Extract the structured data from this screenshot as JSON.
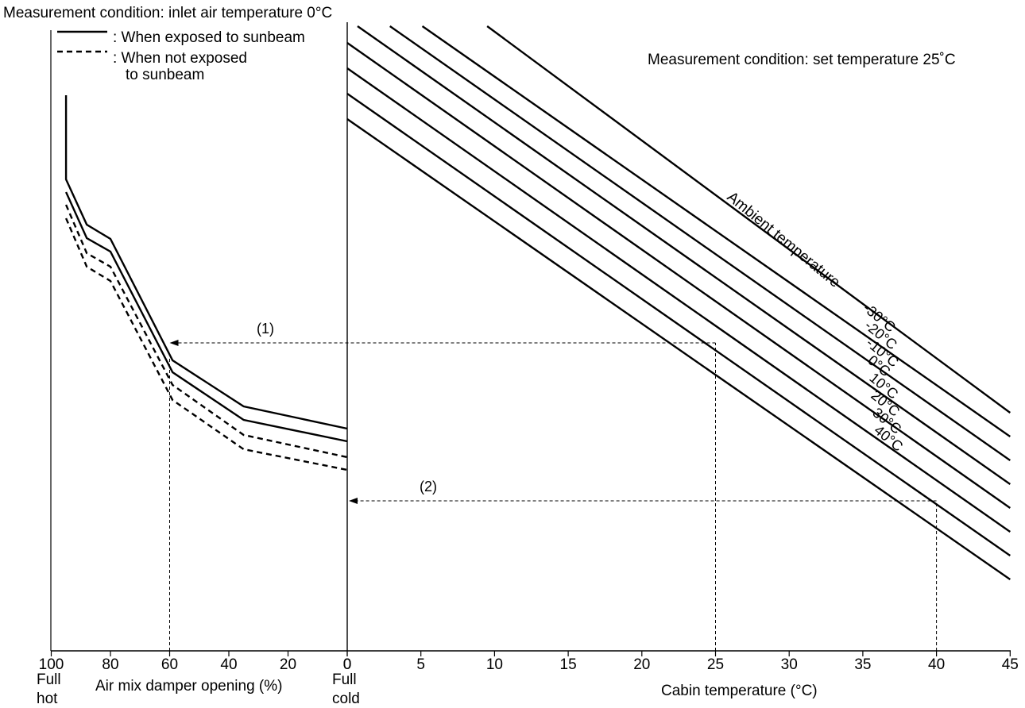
{
  "header": {
    "left_condition": "Measurement condition: inlet air temperature 0°C",
    "right_condition": "Measurement condition: set temperature 25˚C"
  },
  "legend": {
    "solid_label": ": When exposed to sunbeam",
    "dashed_label_line1": ": When not exposed",
    "dashed_label_line2": "to sunbeam"
  },
  "chart_data": [
    {
      "type": "line",
      "xlabel": "Air mix damper opening (%)",
      "x_ticks": [
        100,
        80,
        60,
        40,
        20,
        0
      ],
      "xlim": [
        100,
        0
      ],
      "x_end_labels": {
        "left_line1": "Full",
        "left_line2": "hot",
        "right_line1": "Full",
        "right_line2": "cold"
      },
      "series": [
        {
          "style": "solid",
          "points": [
            [
              95,
              120
            ],
            [
              95,
              226
            ],
            [
              88,
              283
            ],
            [
              80,
              301
            ],
            [
              59,
              454
            ],
            [
              35,
              512
            ],
            [
              0,
              540
            ]
          ]
        },
        {
          "style": "solid",
          "points": [
            [
              95,
              242
            ],
            [
              88,
              300
            ],
            [
              80,
              317
            ],
            [
              59,
              469
            ],
            [
              35,
              529
            ],
            [
              0,
              556
            ]
          ]
        },
        {
          "style": "dashed",
          "points": [
            [
              95,
              258
            ],
            [
              88,
              319
            ],
            [
              80,
              336
            ],
            [
              59,
              485
            ],
            [
              35,
              548
            ],
            [
              0,
              576
            ]
          ]
        },
        {
          "style": "dashed",
          "points": [
            [
              95,
              275
            ],
            [
              88,
              336
            ],
            [
              80,
              354
            ],
            [
              59,
              504
            ],
            [
              35,
              566
            ],
            [
              0,
              592
            ]
          ]
        }
      ]
    },
    {
      "type": "line",
      "xlabel": "Cabin temperature (°C)",
      "x_ticks": [
        0,
        5,
        10,
        15,
        20,
        25,
        30,
        35,
        40,
        45
      ],
      "xlim": [
        0,
        45
      ],
      "series_title": "Ambient temperature",
      "series": [
        {
          "name": "-30°C",
          "points": [
            [
              9.5,
              33
            ],
            [
              45,
              520
            ]
          ]
        },
        {
          "name": "-20°C",
          "points": [
            [
              5.1,
              33
            ],
            [
              45,
              550
            ]
          ]
        },
        {
          "name": "-10°C",
          "points": [
            [
              2.9,
              33
            ],
            [
              45,
              580
            ]
          ]
        },
        {
          "name": "0°C",
          "points": [
            [
              0.7,
              33
            ],
            [
              45,
              610
            ]
          ]
        },
        {
          "name": "10°C",
          "points": [
            [
              0,
              54
            ],
            [
              45,
              640
            ]
          ]
        },
        {
          "name": "20°C",
          "points": [
            [
              0,
              86
            ],
            [
              45,
              670
            ]
          ]
        },
        {
          "name": "30°C",
          "points": [
            [
              0,
              118
            ],
            [
              45,
              700
            ]
          ]
        },
        {
          "name": "40°C",
          "points": [
            [
              0,
              150
            ],
            [
              45,
              730
            ]
          ]
        }
      ]
    }
  ],
  "annotations": [
    {
      "label": "(1)",
      "cabin_temp": 25,
      "damper_opening": 60
    },
    {
      "label": "(2)",
      "cabin_temp": 40,
      "damper_opening": 0
    }
  ]
}
